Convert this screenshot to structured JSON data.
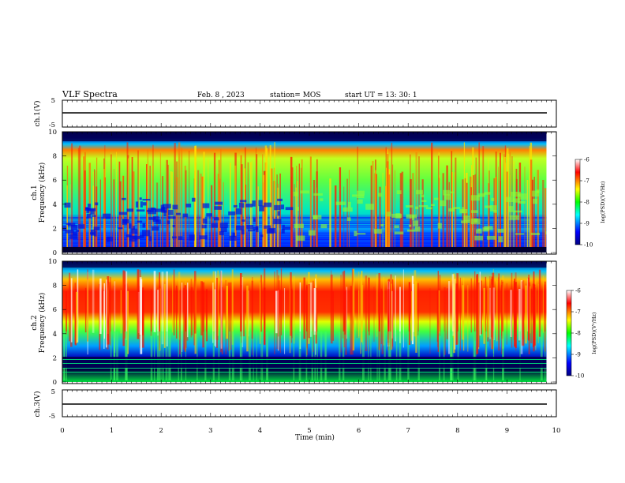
{
  "header": {
    "title": "VLF Spectra",
    "date": "Feb. 8 , 2023",
    "station": "station= MOS",
    "start": "start UT =   13: 30: 1"
  },
  "chart_data": [
    {
      "type": "line",
      "ylabel": "ch.1(V)",
      "ylim": [
        -5,
        5
      ],
      "yticks": [
        "5",
        "-5"
      ],
      "xlim": [
        0,
        10
      ],
      "series": [
        {
          "x": [
            0,
            9.8
          ],
          "y": [
            0,
            0
          ]
        }
      ]
    },
    {
      "type": "heatmap",
      "ylabel": "ch.1\nFrequency (kHz)",
      "ylim": [
        0,
        10
      ],
      "yticks": [
        "0",
        "2",
        "4",
        "6",
        "8",
        "10"
      ],
      "xlim": [
        0,
        10
      ],
      "data_extent_min": 9.8,
      "colorbar": {
        "label": "log(PSD)(V²/Hz)",
        "range": [
          -10,
          -6
        ],
        "ticks": [
          "-6",
          "-7",
          "-8",
          "-9",
          "-10"
        ]
      },
      "time_profile": [
        {
          "t": 0.0,
          "level": 0.55
        },
        {
          "t": 1.0,
          "level": 0.5
        },
        {
          "t": 3.0,
          "level": 0.5
        },
        {
          "t": 4.5,
          "level": 0.55
        },
        {
          "t": 5.5,
          "level": 0.62
        },
        {
          "t": 6.5,
          "level": 0.68
        },
        {
          "t": 8.0,
          "level": 0.68
        },
        {
          "t": 9.8,
          "level": 0.65
        }
      ]
    },
    {
      "type": "heatmap",
      "ylabel": "ch.2\nFrequency (kHz)",
      "ylim": [
        0,
        10
      ],
      "yticks": [
        "0",
        "2",
        "4",
        "6",
        "8",
        "10"
      ],
      "xlim": [
        0,
        10
      ],
      "data_extent_min": 9.8,
      "colorbar": {
        "label": "log(PSD)(V²/Hz)",
        "range": [
          -10,
          -6
        ],
        "ticks": [
          "-6",
          "-7",
          "-8",
          "-9",
          "-10"
        ]
      },
      "time_profile": [
        {
          "t": 0.0,
          "level": 0.7
        },
        {
          "t": 9.8,
          "level": 0.7
        }
      ]
    },
    {
      "type": "line",
      "ylabel": "ch.3(V)",
      "ylim": [
        -5,
        5
      ],
      "yticks": [
        "5",
        "-5"
      ],
      "xlim": [
        0,
        10
      ],
      "xlabel": "Time  (min)",
      "xticks": [
        "0",
        "1",
        "2",
        "3",
        "4",
        "5",
        "6",
        "7",
        "8",
        "9",
        "10"
      ],
      "series": [
        {
          "x": [
            0,
            9.8
          ],
          "y": [
            0,
            0
          ]
        }
      ]
    }
  ],
  "colorscale": [
    "#000060",
    "#0000ff",
    "#00ffff",
    "#00ff00",
    "#ffff00",
    "#ff0000",
    "#ffffff"
  ]
}
